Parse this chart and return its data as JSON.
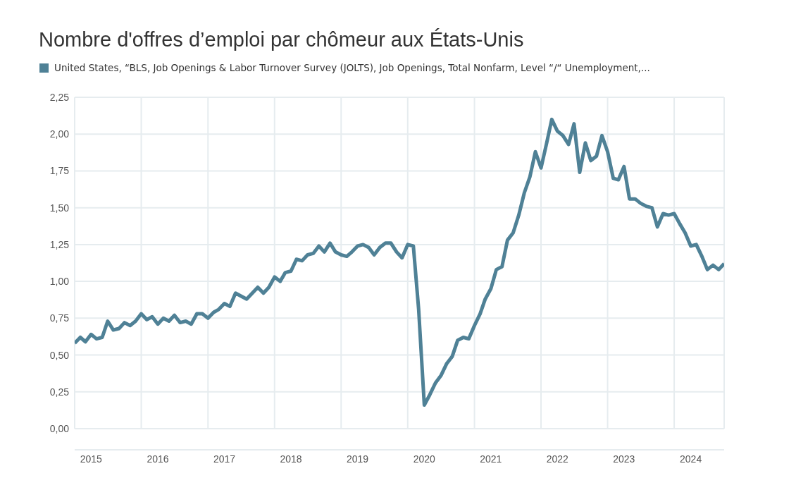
{
  "chart_data": {
    "type": "line",
    "title": "Nombre d'offres d’emploi par chômeur aux États-Unis",
    "x": [
      "2015-01",
      "2015-02",
      "2015-03",
      "2015-04",
      "2015-05",
      "2015-06",
      "2015-07",
      "2015-08",
      "2015-09",
      "2015-10",
      "2015-11",
      "2015-12",
      "2016-01",
      "2016-02",
      "2016-03",
      "2016-04",
      "2016-05",
      "2016-06",
      "2016-07",
      "2016-08",
      "2016-09",
      "2016-10",
      "2016-11",
      "2016-12",
      "2017-01",
      "2017-02",
      "2017-03",
      "2017-04",
      "2017-05",
      "2017-06",
      "2017-07",
      "2017-08",
      "2017-09",
      "2017-10",
      "2017-11",
      "2017-12",
      "2018-01",
      "2018-02",
      "2018-03",
      "2018-04",
      "2018-05",
      "2018-06",
      "2018-07",
      "2018-08",
      "2018-09",
      "2018-10",
      "2018-11",
      "2018-12",
      "2019-01",
      "2019-02",
      "2019-03",
      "2019-04",
      "2019-05",
      "2019-06",
      "2019-07",
      "2019-08",
      "2019-09",
      "2019-10",
      "2019-11",
      "2019-12",
      "2020-01",
      "2020-02",
      "2020-03",
      "2020-04",
      "2020-05",
      "2020-06",
      "2020-07",
      "2020-08",
      "2020-09",
      "2020-10",
      "2020-11",
      "2020-12",
      "2021-01",
      "2021-02",
      "2021-03",
      "2021-04",
      "2021-05",
      "2021-06",
      "2021-07",
      "2021-08",
      "2021-09",
      "2021-10",
      "2021-11",
      "2021-12",
      "2022-01",
      "2022-02",
      "2022-03",
      "2022-04",
      "2022-05",
      "2022-06",
      "2022-07",
      "2022-08",
      "2022-09",
      "2022-10",
      "2022-11",
      "2022-12",
      "2023-01",
      "2023-02",
      "2023-03",
      "2023-04",
      "2023-05",
      "2023-06",
      "2023-07",
      "2023-08",
      "2023-09",
      "2023-10",
      "2023-11",
      "2023-12",
      "2024-01",
      "2024-02",
      "2024-03",
      "2024-04",
      "2024-05",
      "2024-06",
      "2024-07",
      "2024-08",
      "2024-09",
      "2024-10"
    ],
    "series": [
      {
        "name": "United States, “BLS, Job Openings & Labor Turnover Survey (JOLTS), Job Openings, Total Nonfarm, Level “/“ Unemployment,...",
        "color": "#4f8196",
        "values": [
          0.58,
          0.62,
          0.59,
          0.64,
          0.61,
          0.62,
          0.73,
          0.67,
          0.68,
          0.72,
          0.7,
          0.73,
          0.78,
          0.74,
          0.76,
          0.71,
          0.75,
          0.73,
          0.77,
          0.72,
          0.73,
          0.71,
          0.78,
          0.78,
          0.75,
          0.79,
          0.81,
          0.85,
          0.83,
          0.92,
          0.9,
          0.88,
          0.92,
          0.96,
          0.92,
          0.96,
          1.03,
          1.0,
          1.06,
          1.07,
          1.15,
          1.14,
          1.18,
          1.19,
          1.24,
          1.2,
          1.26,
          1.2,
          1.18,
          1.17,
          1.2,
          1.24,
          1.25,
          1.23,
          1.18,
          1.23,
          1.26,
          1.26,
          1.2,
          1.16,
          1.25,
          1.24,
          0.81,
          0.16,
          0.23,
          0.31,
          0.36,
          0.44,
          0.49,
          0.6,
          0.62,
          0.61,
          0.7,
          0.78,
          0.88,
          0.95,
          1.08,
          1.1,
          1.28,
          1.33,
          1.45,
          1.6,
          1.71,
          1.88,
          1.77,
          1.94,
          2.1,
          2.02,
          1.99,
          1.93,
          2.07,
          1.74,
          1.94,
          1.82,
          1.85,
          1.99,
          1.88,
          1.7,
          1.69,
          1.78,
          1.56,
          1.56,
          1.53,
          1.51,
          1.5,
          1.37,
          1.46,
          1.45,
          1.46,
          1.39,
          1.33,
          1.24,
          1.25,
          1.17,
          1.08,
          1.11,
          1.08,
          1.12
        ]
      }
    ],
    "xlim": [
      "2015-01",
      "2024-10"
    ],
    "xticks": [
      {
        "value": "2016-01",
        "label": null
      },
      {
        "value": "2017-01",
        "label": null
      },
      {
        "value": "2018-01",
        "label": null
      },
      {
        "value": "2019-01",
        "label": null
      },
      {
        "value": "2020-01",
        "label": null
      },
      {
        "value": "2021-01",
        "label": null
      },
      {
        "value": "2022-01",
        "label": null
      },
      {
        "value": "2023-01",
        "label": null
      },
      {
        "value": "2024-01",
        "label": null
      },
      {
        "value": "2015-04",
        "label": "2015"
      },
      {
        "value": "2016-04",
        "label": "2016"
      },
      {
        "value": "2017-04",
        "label": "2017"
      },
      {
        "value": "2018-04",
        "label": "2018"
      },
      {
        "value": "2019-04",
        "label": "2019"
      },
      {
        "value": "2020-04",
        "label": "2020"
      },
      {
        "value": "2021-04",
        "label": "2021"
      },
      {
        "value": "2022-04",
        "label": "2022"
      },
      {
        "value": "2023-04",
        "label": "2023"
      },
      {
        "value": "2024-04",
        "label": "2024"
      }
    ],
    "ylim": [
      0,
      2.25
    ],
    "yticks": [
      {
        "value": 0,
        "label": "0,00"
      },
      {
        "value": 0.25,
        "label": "0,25"
      },
      {
        "value": 0.5,
        "label": "0,50"
      },
      {
        "value": 0.75,
        "label": "0,75"
      },
      {
        "value": 1,
        "label": "1,00"
      },
      {
        "value": 1.25,
        "label": "1,25"
      },
      {
        "value": 1.5,
        "label": "1,50"
      },
      {
        "value": 1.75,
        "label": "1,75"
      },
      {
        "value": 2,
        "label": "2,00"
      },
      {
        "value": 2.25,
        "label": "2,25"
      }
    ],
    "grid": true,
    "legend": "top left",
    "marker": "none",
    "line_style": "solid"
  }
}
